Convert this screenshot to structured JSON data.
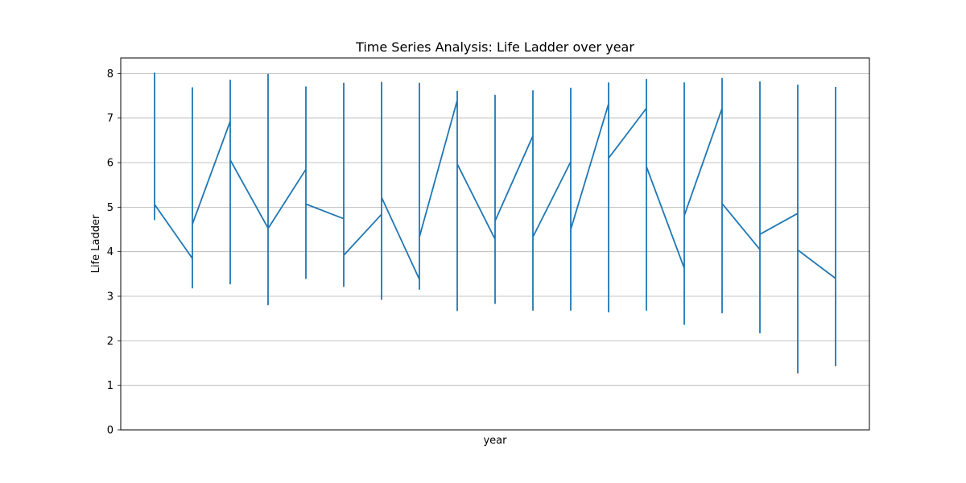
{
  "chart_data": {
    "type": "line",
    "title": "Time Series Analysis: Life Ladder over year",
    "xlabel": "year",
    "ylabel": "Life Ladder",
    "ylim": [
      0,
      8.35
    ],
    "y_ticks": [
      "0",
      "1",
      "2",
      "3",
      "4",
      "5",
      "6",
      "7",
      "8"
    ],
    "grid": "horizontal",
    "x_tick_labels": "none",
    "series_color": "#1f77b4",
    "series": [
      {
        "values": [
          8.02,
          4.72,
          5.06,
          3.85,
          3.19,
          7.68,
          4.62,
          6.93,
          3.28,
          7.85,
          6.06,
          4.53,
          4.02,
          2.81,
          7.98,
          4.52,
          5.85,
          3.4,
          7.7,
          5.07,
          4.74,
          3.9,
          3.22,
          7.78,
          3.92,
          4.84,
          2.93,
          7.8,
          5.22,
          3.38,
          3.16,
          7.78,
          4.33,
          7.4,
          2.68,
          7.6,
          5.97,
          4.28,
          2.84,
          7.51,
          4.69,
          6.6,
          2.69,
          7.61,
          4.33,
          6.02,
          2.69,
          7.67,
          4.5,
          7.32,
          2.65,
          7.79,
          6.1,
          7.22,
          2.69,
          7.87,
          5.91,
          3.63,
          2.37,
          7.79,
          4.81,
          7.22,
          2.63,
          7.89,
          5.08,
          4.05,
          2.18,
          7.81,
          4.39,
          4.86,
          1.28,
          7.74,
          4.04,
          3.4,
          1.44,
          7.7
        ]
      }
    ]
  }
}
